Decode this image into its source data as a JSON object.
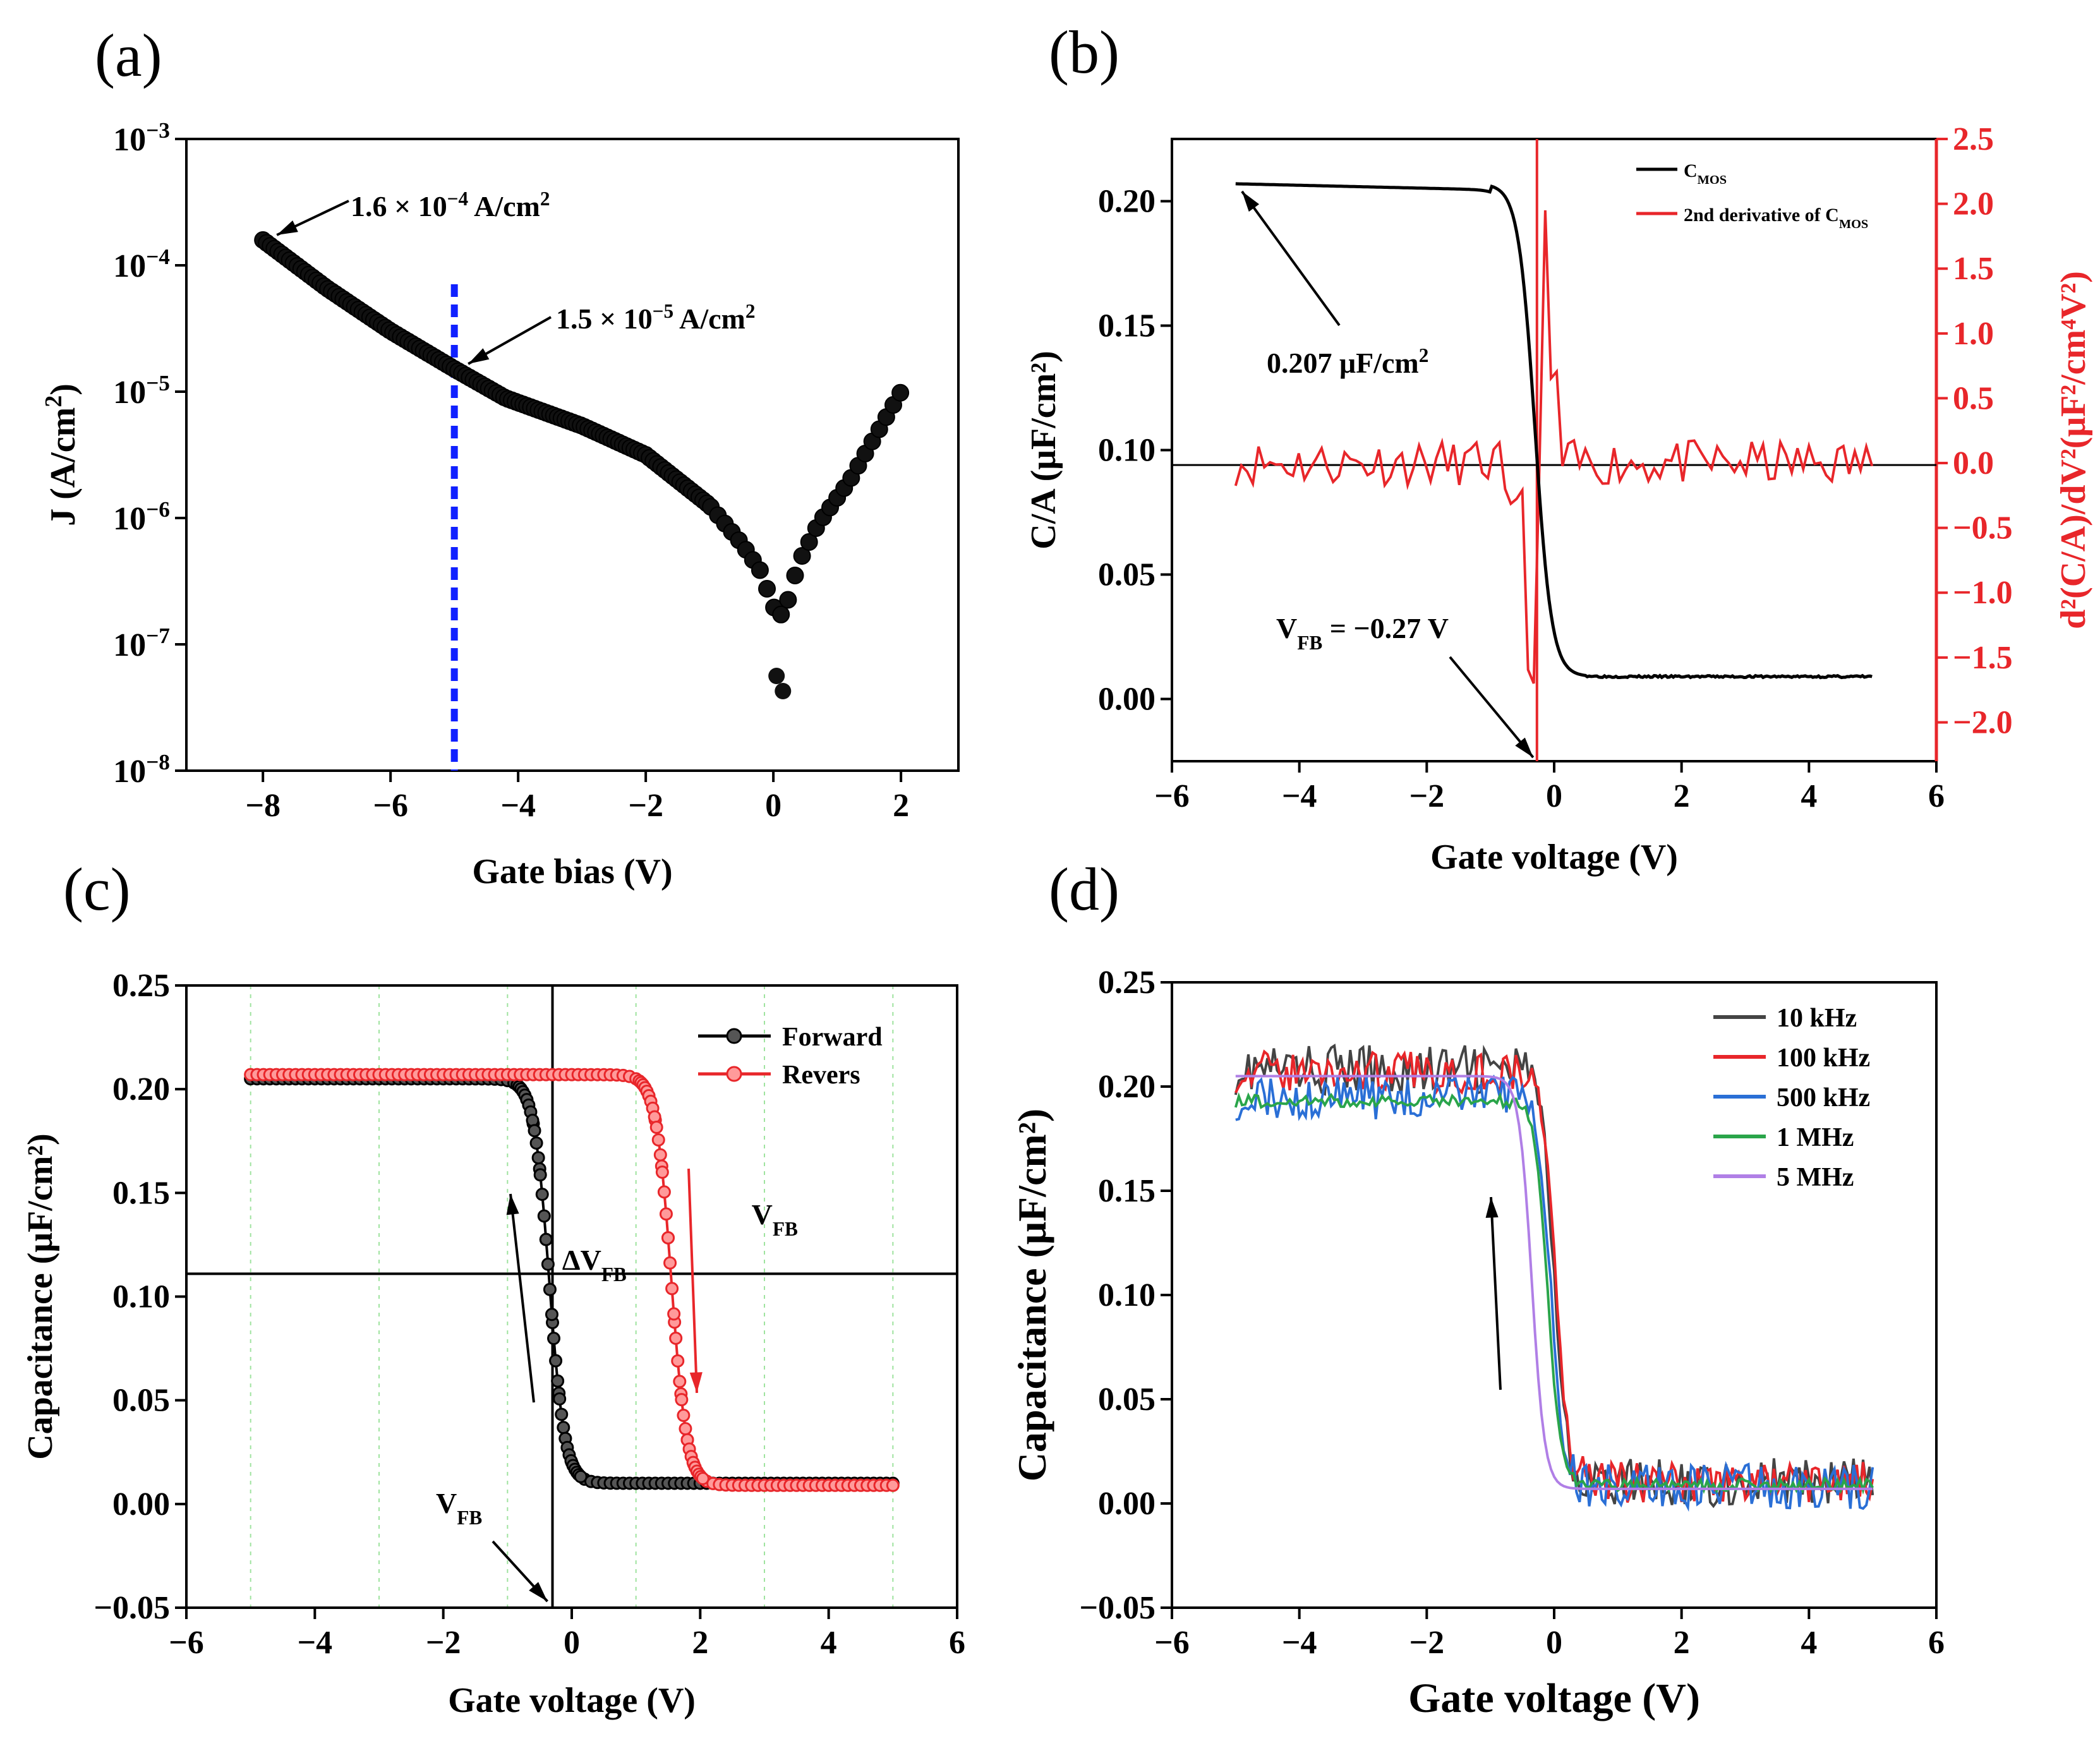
{
  "panels": {
    "a": "(a)",
    "b": "(b)",
    "c": "(c)",
    "d": "(d)"
  },
  "colors": {
    "black": "#000000",
    "red": "#e8262a",
    "blue_dash": "#1020ff",
    "green_grid": "#9fe39f",
    "s10k": "#444444",
    "s100k": "#e8262a",
    "s500k": "#2a6fd6",
    "s1M": "#2aa54a",
    "s5M": "#b07fe6"
  },
  "chart_data": [
    {
      "id": "a",
      "type": "scatter",
      "xlabel": "Gate bias (V)",
      "ylabel": "J (A/cm²)",
      "ylabel_main": "J",
      "ylabel_unit": "(A/cm",
      "ylabel_sup": "2",
      "ylabel_close": ")",
      "yscale": "log",
      "xlim": [
        -9.2,
        2.9
      ],
      "ylim_exp": [
        -8,
        -3
      ],
      "xticks": [
        -8,
        -6,
        -4,
        -2,
        0,
        2
      ],
      "xtick_labels": [
        "−8",
        "−6",
        "−4",
        "−2",
        "0",
        "2"
      ],
      "ytick_exps": [
        -8,
        -7,
        -6,
        -5,
        -4,
        -3
      ],
      "ytick_base": "10",
      "ytick_sups": [
        "−8",
        "−7",
        "−6",
        "−5",
        "−4",
        "−3"
      ],
      "dashed_line_x": -5,
      "curve": {
        "x": [
          -8,
          -7,
          -6,
          -5,
          -4.2,
          -3,
          -2,
          -1,
          -0.5,
          -0.2,
          0,
          0.1,
          0.2,
          0.4,
          0.7,
          1.2,
          1.6,
          2.0
        ],
        "logJ": [
          -3.8,
          -4.18,
          -4.52,
          -4.82,
          -5.05,
          -5.27,
          -5.5,
          -5.9,
          -6.2,
          -6.42,
          -6.7,
          -6.78,
          -6.7,
          -6.35,
          -6.05,
          -5.7,
          -5.35,
          -5.0
        ]
      },
      "outliers": [
        {
          "x": 0.05,
          "logJ": -7.25
        },
        {
          "x": 0.15,
          "logJ": -7.37
        }
      ],
      "annotations": [
        {
          "text_pre": "1.6 × 10",
          "sup": "−4",
          "text_post": " A/cm",
          "sup2": "2",
          "x": -8,
          "logJ": -3.8
        },
        {
          "text_pre": "1.5 × 10",
          "sup": "−5",
          "text_post": " A/cm",
          "sup2": "2",
          "x": -5,
          "logJ": -4.82
        }
      ]
    },
    {
      "id": "b",
      "type": "line",
      "xlabel": "Gate voltage (V)",
      "ylabel": "C/A (μF/cm²)",
      "ylabel_right": "d²(C/A)/dV²(μF²/cm⁴V²)",
      "xlim": [
        -6,
        6
      ],
      "ylim": [
        -0.025,
        0.225
      ],
      "ylim_right": [
        -2.3,
        2.5
      ],
      "xticks": [
        -6,
        -4,
        -2,
        0,
        2,
        4,
        6
      ],
      "xtick_labels": [
        "−6",
        "−4",
        "−2",
        "0",
        "2",
        "4",
        "6"
      ],
      "yticks": [
        0.0,
        0.05,
        0.1,
        0.15,
        0.2
      ],
      "ytick_labels": [
        "0.00",
        "0.05",
        "0.10",
        "0.15",
        "0.20"
      ],
      "yticks_right": [
        -2.0,
        -1.5,
        -1.0,
        -0.5,
        0.0,
        0.5,
        1.0,
        1.5,
        2.0,
        2.5
      ],
      "ytick_labels_right": [
        "−2.0",
        "−1.5",
        "−1.0",
        "−0.5",
        "0.0",
        "0.5",
        "1.0",
        "1.5",
        "2.0",
        "2.5"
      ],
      "hline_y": 0.094,
      "vline_x": -0.27,
      "cmos": {
        "plateau": 0.207,
        "low": 0.009,
        "v0": -0.3,
        "width": 0.13,
        "x_range": [
          -5,
          5
        ]
      },
      "legend": [
        {
          "label": "C",
          "sub": "MOS",
          "color": "black"
        },
        {
          "label": "2nd derivative of C",
          "sub": "MOS",
          "color": "red"
        }
      ],
      "annotations": [
        {
          "text": "0.207 μF/cm",
          "sup": "2",
          "x": -5,
          "y": 0.207
        },
        {
          "text": "V",
          "sub": "FB",
          "text_post": " = −0.27 V",
          "x": -0.27,
          "y": -0.025
        }
      ]
    },
    {
      "id": "c",
      "type": "scatter",
      "xlabel": "Gate voltage (V)",
      "ylabel": "Capacitance (μF/cm²)",
      "xlim": [
        -6,
        6
      ],
      "ylim": [
        -0.05,
        0.25
      ],
      "xticks": [
        -6,
        -4,
        -2,
        0,
        2,
        4,
        6
      ],
      "xtick_labels": [
        "−6",
        "−4",
        "−2",
        "0",
        "2",
        "4",
        "6"
      ],
      "yticks": [
        -0.05,
        0.0,
        0.05,
        0.1,
        0.15,
        0.2,
        0.25
      ],
      "ytick_labels": [
        "−0.05",
        "0.00",
        "0.05",
        "0.10",
        "0.15",
        "0.20",
        "0.25"
      ],
      "hline_y": 0.111,
      "vline_x": -0.3,
      "series": [
        {
          "name": "Forward",
          "color": "black",
          "plateau": 0.205,
          "low": 0.01,
          "v0": -0.35,
          "width": 0.12
        },
        {
          "name": "Revers",
          "color": "red",
          "plateau": 0.207,
          "low": 0.009,
          "v0": 1.55,
          "width": 0.12
        }
      ],
      "labels": [
        {
          "text": "V",
          "sub": "FB",
          "x": 2.8,
          "y": 0.141
        },
        {
          "text": "ΔV",
          "sub": "FB",
          "x": -0.15,
          "y": 0.119
        },
        {
          "text": "V",
          "sub": "FB",
          "x": -1.9,
          "y": -0.033
        }
      ]
    },
    {
      "id": "d",
      "type": "line",
      "xlabel": "Gate voltage (V)",
      "ylabel": "Capacitance (μF/cm²)",
      "xlim": [
        -6,
        6
      ],
      "ylim": [
        -0.05,
        0.25
      ],
      "xticks": [
        -6,
        -4,
        -2,
        0,
        2,
        4,
        6
      ],
      "xtick_labels": [
        "−6",
        "−4",
        "−2",
        "0",
        "2",
        "4",
        "6"
      ],
      "yticks": [
        -0.05,
        0.0,
        0.05,
        0.1,
        0.15,
        0.2,
        0.25
      ],
      "ytick_labels": [
        "−0.05",
        "0.00",
        "0.05",
        "0.10",
        "0.15",
        "0.20",
        "0.25"
      ],
      "series": [
        {
          "name": "10 kHz",
          "color": "s10k",
          "plateau": 0.208,
          "low": 0.01,
          "v0": 0.0,
          "width": 0.1,
          "noise": 0.012
        },
        {
          "name": "100 kHz",
          "color": "s100k",
          "plateau": 0.207,
          "low": 0.01,
          "v0": 0.02,
          "width": 0.1,
          "noise": 0.01
        },
        {
          "name": "500 kHz",
          "color": "s500k",
          "plateau": 0.195,
          "low": 0.008,
          "v0": -0.05,
          "width": 0.1,
          "noise": 0.011
        },
        {
          "name": "1 MHz",
          "color": "s1M",
          "plateau": 0.193,
          "low": 0.009,
          "v0": -0.1,
          "width": 0.1,
          "noise": 0.003
        },
        {
          "name": "5 MHz",
          "color": "s5M",
          "plateau": 0.205,
          "low": 0.007,
          "v0": -0.35,
          "width": 0.1,
          "noise": 0.0
        }
      ]
    }
  ]
}
